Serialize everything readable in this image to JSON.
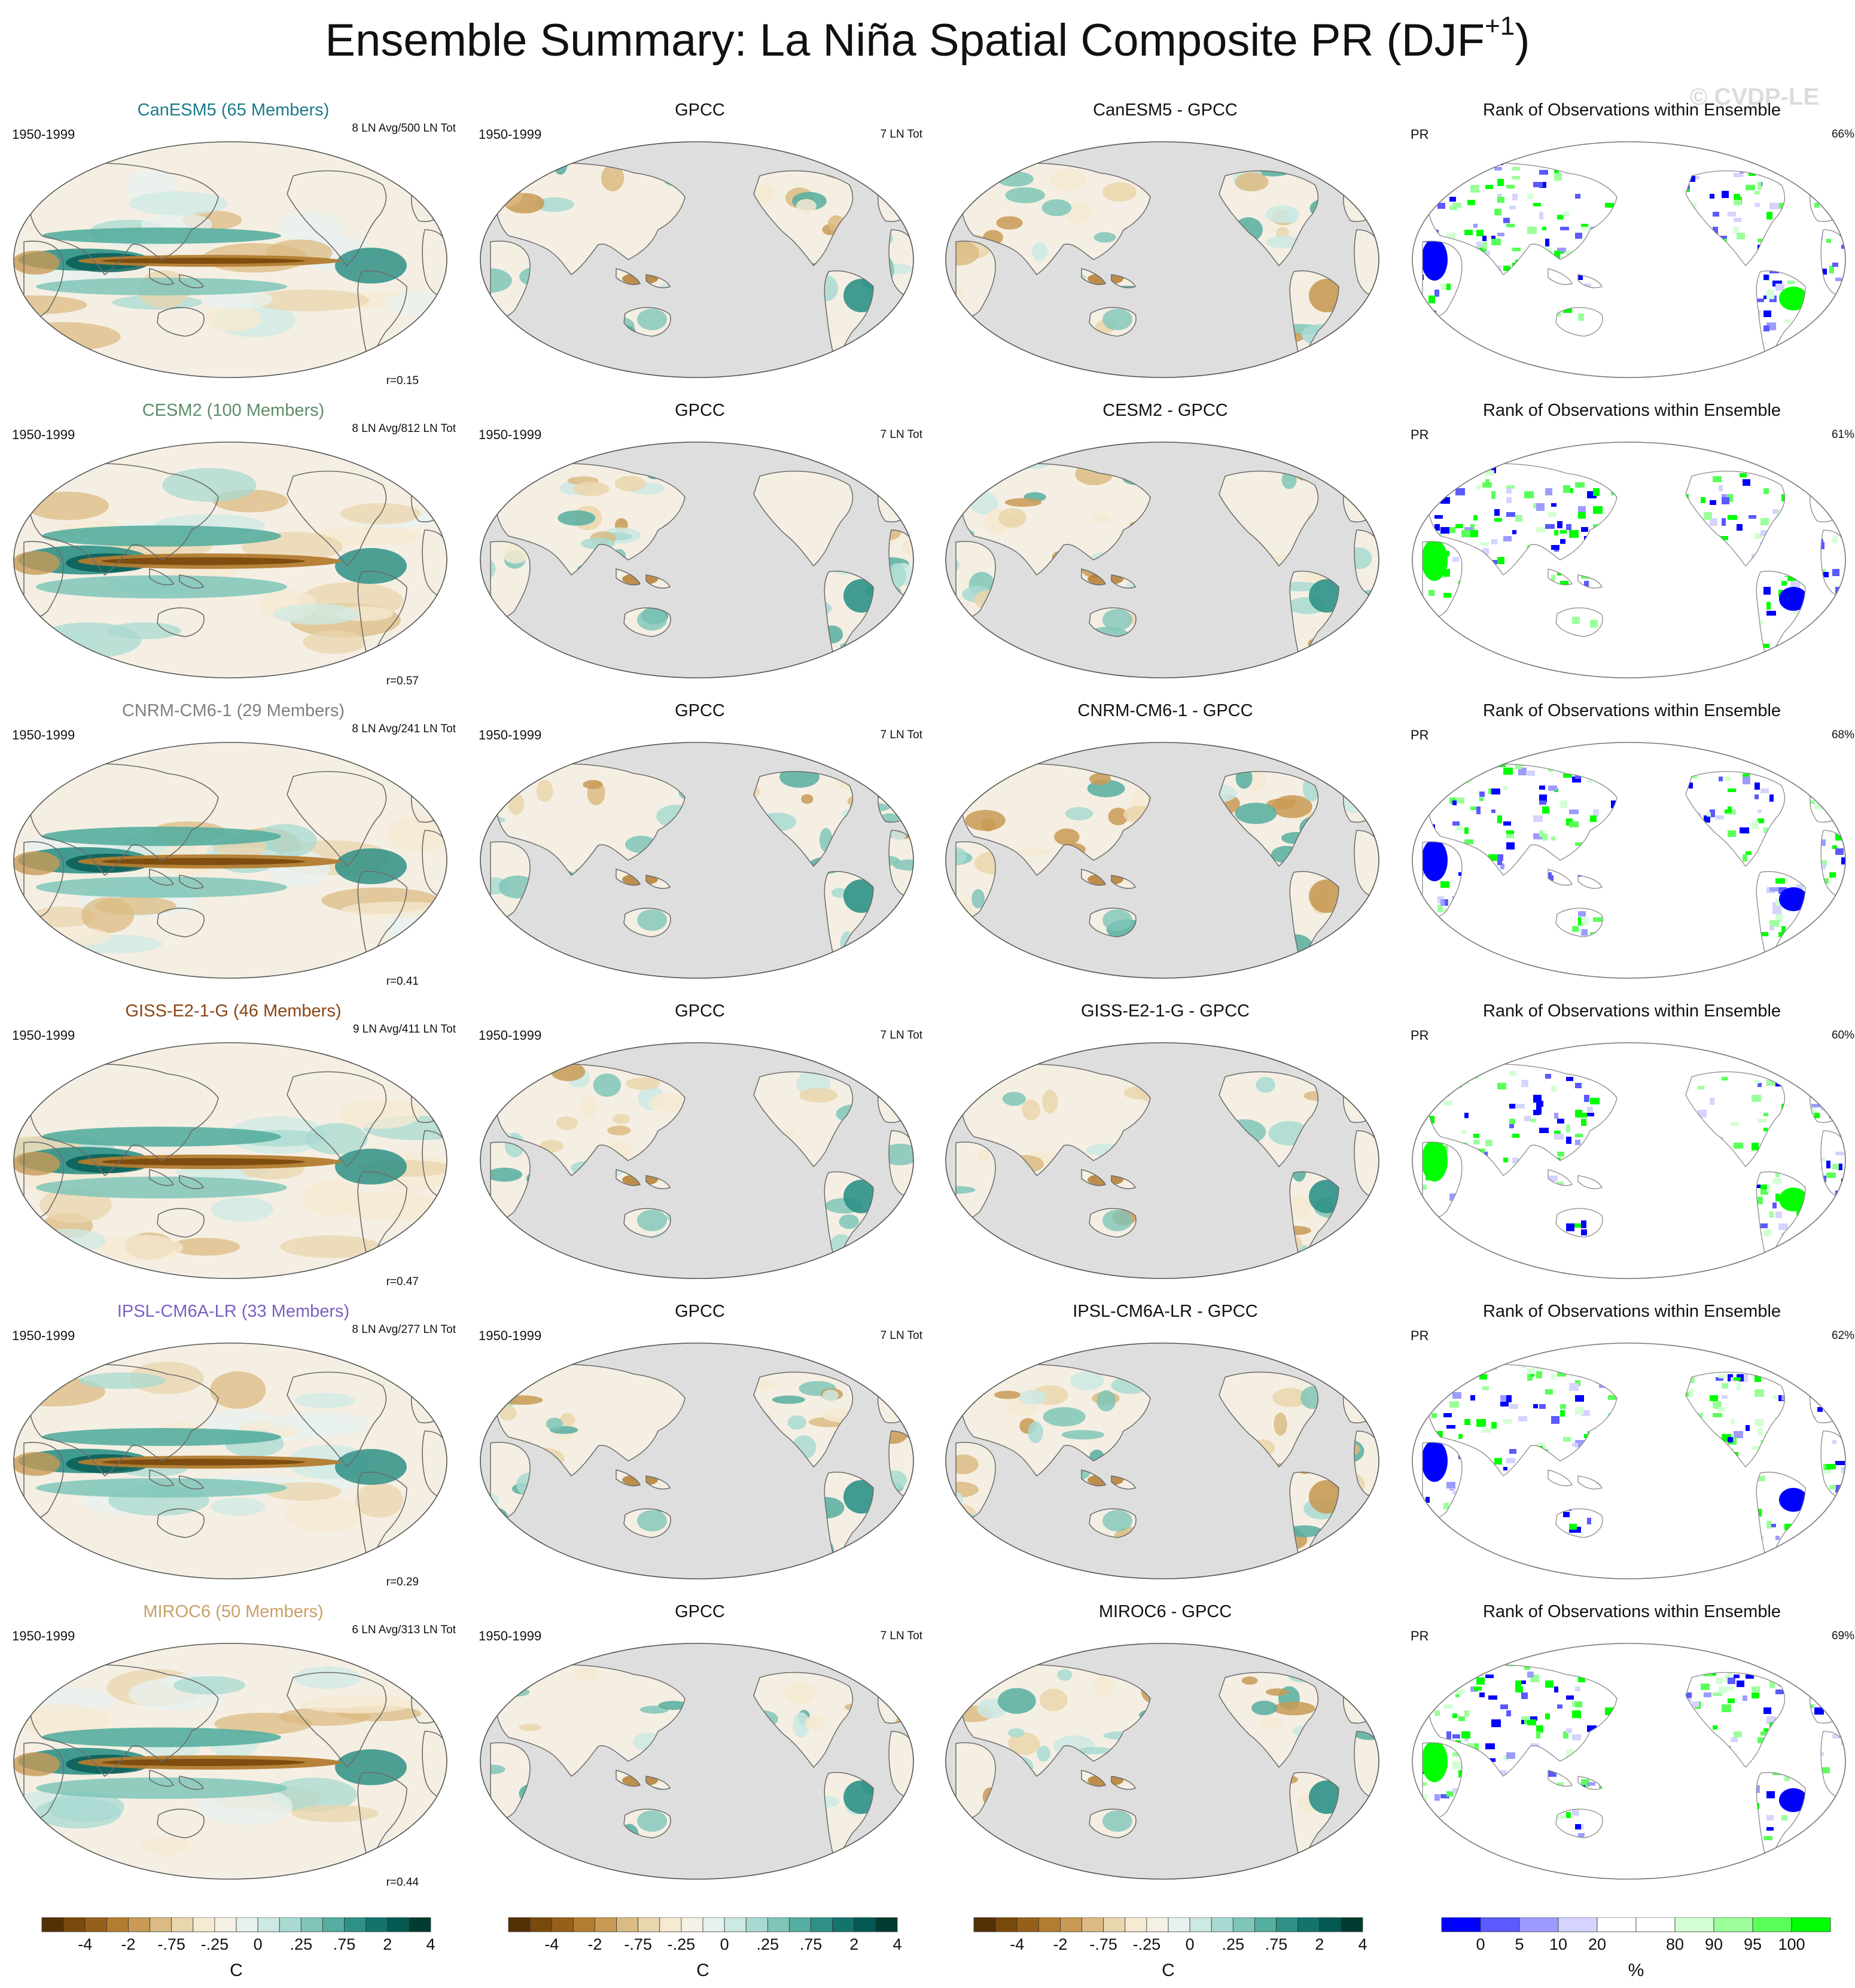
{
  "title": {
    "main": "Ensemble Summary: La Niña Spatial Composite PR (DJF",
    "sup": "+1",
    "close": ")"
  },
  "watermark": "© CVDP-LE",
  "rows": [
    {
      "model": "CanESM5",
      "color": "#1a7a8c",
      "model_title": "CanESM5 (65 Members)",
      "period": "1950-1999",
      "count": "8 LN Avg/500 LN Tot",
      "r": "r=0.15",
      "obs_title": "GPCC",
      "obs_period": "1950-1999",
      "obs_count": "7 LN Tot",
      "diff_title": "CanESM5 - GPCC",
      "rank_title": "Rank of Observations within Ensemble",
      "rank_var": "PR",
      "rank_pct": "66%"
    },
    {
      "model": "CESM2",
      "color": "#5e8c6a",
      "model_title": "CESM2 (100 Members)",
      "period": "1950-1999",
      "count": "8 LN Avg/812 LN Tot",
      "r": "r=0.57",
      "obs_title": "GPCC",
      "obs_period": "1950-1999",
      "obs_count": "7 LN Tot",
      "diff_title": "CESM2 - GPCC",
      "rank_title": "Rank of Observations within Ensemble",
      "rank_var": "PR",
      "rank_pct": "61%"
    },
    {
      "model": "CNRM-CM6-1",
      "color": "#808080",
      "model_title": "CNRM-CM6-1 (29 Members)",
      "period": "1950-1999",
      "count": "8 LN Avg/241 LN Tot",
      "r": "r=0.41",
      "obs_title": "GPCC",
      "obs_period": "1950-1999",
      "obs_count": "7 LN Tot",
      "diff_title": "CNRM-CM6-1 - GPCC",
      "rank_title": "Rank of Observations within Ensemble",
      "rank_var": "PR",
      "rank_pct": "68%"
    },
    {
      "model": "GISS-E2-1-G",
      "color": "#8b4513",
      "model_title": "GISS-E2-1-G (46 Members)",
      "period": "1950-1999",
      "count": "9 LN Avg/411 LN Tot",
      "r": "r=0.47",
      "obs_title": "GPCC",
      "obs_period": "1950-1999",
      "obs_count": "7 LN Tot",
      "diff_title": "GISS-E2-1-G - GPCC",
      "rank_title": "Rank of Observations within Ensemble",
      "rank_var": "PR",
      "rank_pct": "60%"
    },
    {
      "model": "IPSL-CM6A-LR",
      "color": "#7b5fc4",
      "model_title": "IPSL-CM6A-LR (33 Members)",
      "period": "1950-1999",
      "count": "8 LN Avg/277 LN Tot",
      "r": "r=0.29",
      "obs_title": "GPCC",
      "obs_period": "1950-1999",
      "obs_count": "7 LN Tot",
      "diff_title": "IPSL-CM6A-LR - GPCC",
      "rank_title": "Rank of Observations within Ensemble",
      "rank_var": "PR",
      "rank_pct": "62%"
    },
    {
      "model": "MIROC6",
      "color": "#c9a066",
      "model_title": "MIROC6 (50 Members)",
      "period": "1950-1999",
      "count": "6 LN Avg/313 LN Tot",
      "r": "r=0.44",
      "obs_title": "GPCC",
      "obs_period": "1950-1999",
      "obs_count": "7 LN Tot",
      "diff_title": "MIROC6 - GPCC",
      "rank_title": "Rank of Observations within Ensemble",
      "rank_var": "PR",
      "rank_pct": "69%"
    }
  ],
  "chart_data": {
    "type": "heatmap",
    "description_free": true,
    "colorbars": [
      {
        "unit": "C",
        "labels": [
          "-4",
          "-2",
          "-.75",
          "-.25",
          "0",
          ".25",
          ".75",
          "2",
          "4"
        ],
        "colors": [
          "#543005",
          "#7a4a0d",
          "#97601a",
          "#b37c30",
          "#c99a55",
          "#dbbb83",
          "#ead6ad",
          "#f5ead2",
          "#f6f1e6",
          "#e7f2ef",
          "#cde9e4",
          "#a8dad1",
          "#7fc6b9",
          "#56aea0",
          "#2f9186",
          "#14736c",
          "#045952",
          "#003c30"
        ]
      },
      {
        "unit": "C",
        "labels": [
          "-4",
          "-2",
          "-.75",
          "-.25",
          "0",
          ".25",
          ".75",
          "2",
          "4"
        ],
        "colors": [
          "#543005",
          "#7a4a0d",
          "#97601a",
          "#b37c30",
          "#c99a55",
          "#dbbb83",
          "#ead6ad",
          "#f5ead2",
          "#f6f1e6",
          "#e7f2ef",
          "#cde9e4",
          "#a8dad1",
          "#7fc6b9",
          "#56aea0",
          "#2f9186",
          "#14736c",
          "#045952",
          "#003c30"
        ]
      },
      {
        "unit": "C",
        "labels": [
          "-4",
          "-2",
          "-.75",
          "-.25",
          "0",
          ".25",
          ".75",
          "2",
          "4"
        ],
        "colors": [
          "#543005",
          "#7a4a0d",
          "#97601a",
          "#b37c30",
          "#c99a55",
          "#dbbb83",
          "#ead6ad",
          "#f5ead2",
          "#f6f1e6",
          "#e7f2ef",
          "#cde9e4",
          "#a8dad1",
          "#7fc6b9",
          "#56aea0",
          "#2f9186",
          "#14736c",
          "#045952",
          "#003c30"
        ]
      },
      {
        "unit": "%",
        "labels": [
          "0",
          "5",
          "10",
          "20",
          "80",
          "90",
          "95",
          "100"
        ],
        "colors": [
          "#0000ff",
          "#5a5aff",
          "#9c9cff",
          "#d4d4ff",
          "#ffffff",
          "#ffffff",
          "#d4ffd4",
          "#9cff9c",
          "#5aff5a",
          "#00ff00"
        ]
      }
    ]
  }
}
